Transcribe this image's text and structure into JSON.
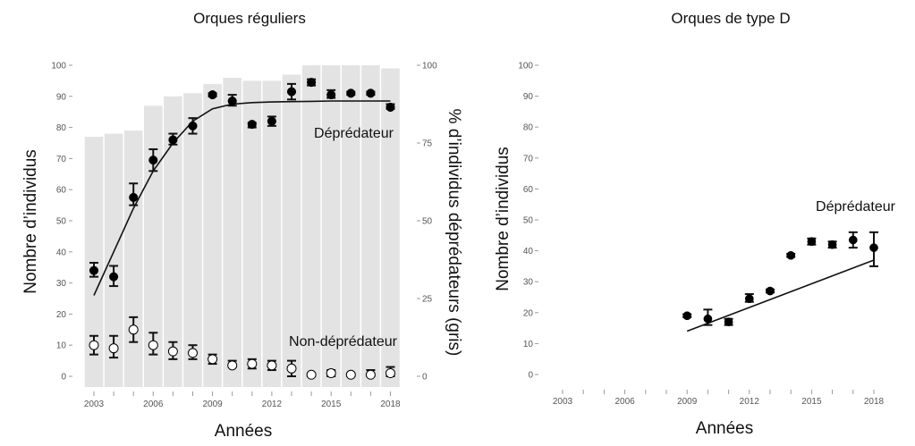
{
  "chart_data": [
    {
      "type": "bar",
      "title": "Orques réguliers",
      "xlabel": "Années",
      "ylabel": "Nombre d’individus",
      "ylabel_right": "% d’individus déprédateurs (gris)",
      "xlim": [
        2003,
        2018
      ],
      "ylim": [
        0,
        100
      ],
      "ylim_right": [
        0,
        100
      ],
      "x_ticks": [
        "2003",
        "2006",
        "2009",
        "2012",
        "2015",
        "2018"
      ],
      "y_ticks": [
        "0",
        "10",
        "20",
        "30",
        "40",
        "50",
        "60",
        "70",
        "80",
        "90",
        "100"
      ],
      "y_ticks_right": [
        "0",
        "25",
        "50",
        "75",
        "100"
      ],
      "bar_color": "#e3e3e3",
      "grid": false,
      "bars": {
        "x": [
          2003,
          2004,
          2005,
          2006,
          2007,
          2008,
          2009,
          2010,
          2011,
          2012,
          2013,
          2014,
          2015,
          2016,
          2017,
          2018
        ],
        "values": [
          77,
          78,
          79,
          87,
          90,
          91,
          94,
          96,
          95,
          95,
          97,
          100,
          100,
          100,
          100,
          99
        ]
      },
      "series": [
        {
          "name": "Déprédateur",
          "marker": "filled",
          "x": [
            2003,
            2004,
            2005,
            2006,
            2007,
            2008,
            2009,
            2010,
            2011,
            2012,
            2013,
            2014,
            2015,
            2016,
            2017,
            2018
          ],
          "values": [
            34,
            32,
            57.5,
            69.5,
            76,
            80.5,
            90.5,
            88.5,
            81,
            82,
            91.5,
            94.5,
            90.5,
            91,
            91,
            86.5
          ],
          "err_low": [
            32,
            29,
            55,
            66,
            74.5,
            78,
            90,
            87,
            80,
            80.5,
            89,
            93.5,
            89.5,
            90.5,
            90.5,
            86
          ],
          "err_high": [
            36.5,
            35.5,
            62,
            73,
            78,
            83,
            91,
            90.5,
            81.5,
            83.5,
            94,
            95.5,
            92,
            91.5,
            91.5,
            87.5
          ],
          "fit_x": [
            2003,
            2004,
            2005,
            2006,
            2007,
            2008,
            2009,
            2010,
            2011,
            2012,
            2013,
            2014,
            2015,
            2016,
            2017,
            2018
          ],
          "fit_y": [
            26,
            40,
            54,
            66,
            75,
            82,
            86,
            87.5,
            88,
            88.2,
            88.3,
            88.4,
            88.5,
            88.5,
            88.5,
            88.5
          ]
        },
        {
          "name": "Non-déprédateur",
          "marker": "open",
          "x": [
            2003,
            2004,
            2005,
            2006,
            2007,
            2008,
            2009,
            2010,
            2011,
            2012,
            2013,
            2014,
            2015,
            2016,
            2017,
            2018
          ],
          "values": [
            10,
            9,
            15,
            10,
            8,
            7.5,
            5.5,
            3.5,
            4,
            3.5,
            2.5,
            0.5,
            1,
            0.5,
            0.5,
            1
          ],
          "err_low": [
            7,
            6,
            11,
            7,
            5.5,
            5.5,
            4,
            3,
            2.5,
            2,
            0,
            0,
            0,
            0,
            0,
            0
          ],
          "err_high": [
            13,
            13,
            19,
            14,
            11,
            10,
            7,
            5,
            5.5,
            5,
            5,
            1,
            2,
            1,
            2,
            3
          ]
        }
      ],
      "annotations": [
        "Déprédateur",
        "Non-déprédateur"
      ]
    },
    {
      "type": "scatter",
      "title": "Orques de type D",
      "xlabel": "Années",
      "ylabel": "Nombre d’individus",
      "xlim": [
        2002,
        2019
      ],
      "ylim": [
        0,
        100
      ],
      "x_ticks": [
        "2003",
        "2006",
        "2009",
        "2012",
        "2015",
        "2018"
      ],
      "y_ticks": [
        "0",
        "10",
        "20",
        "30",
        "40",
        "50",
        "60",
        "70",
        "80",
        "90",
        "100"
      ],
      "grid": false,
      "series": [
        {
          "name": "Déprédateur",
          "marker": "filled",
          "x": [
            2009,
            2010,
            2011,
            2012,
            2013,
            2014,
            2015,
            2016,
            2017,
            2018
          ],
          "values": [
            19,
            18,
            17,
            24.5,
            27,
            38.5,
            43,
            42,
            43.5,
            41
          ],
          "err_low": [
            18.5,
            16,
            16,
            23.5,
            26.5,
            38,
            42,
            41,
            41,
            35
          ],
          "err_high": [
            19.5,
            21,
            18,
            26,
            27.5,
            39,
            44,
            43,
            46,
            46
          ],
          "fit_x": [
            2009,
            2018
          ],
          "fit_y": [
            14,
            37
          ]
        }
      ],
      "annotations": [
        "Déprédateur"
      ]
    }
  ]
}
